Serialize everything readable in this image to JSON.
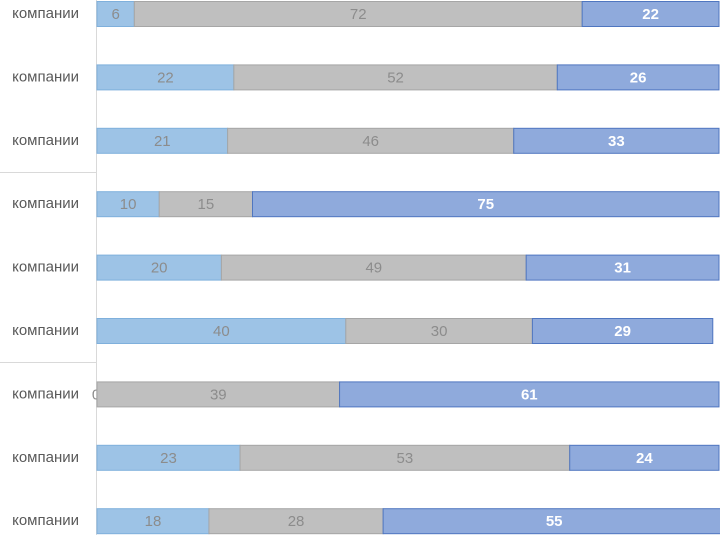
{
  "chart_data": {
    "type": "stacked-bar-horizontal",
    "categories": [
      "компании",
      "компании",
      "компании",
      "компании",
      "компании",
      "компании",
      "компании",
      "компании",
      "компании"
    ],
    "xlim": [
      0,
      100
    ],
    "series": [
      {
        "color": "#9dc3e6",
        "values": [
          6,
          22,
          21,
          10,
          20,
          40,
          0,
          23,
          18
        ]
      },
      {
        "color": "#bfbfbf",
        "values": [
          72,
          52,
          46,
          15,
          49,
          30,
          39,
          53,
          28
        ]
      },
      {
        "color": "#8faadc",
        "values": [
          22,
          26,
          33,
          75,
          31,
          29,
          61,
          24,
          55
        ]
      }
    ]
  }
}
